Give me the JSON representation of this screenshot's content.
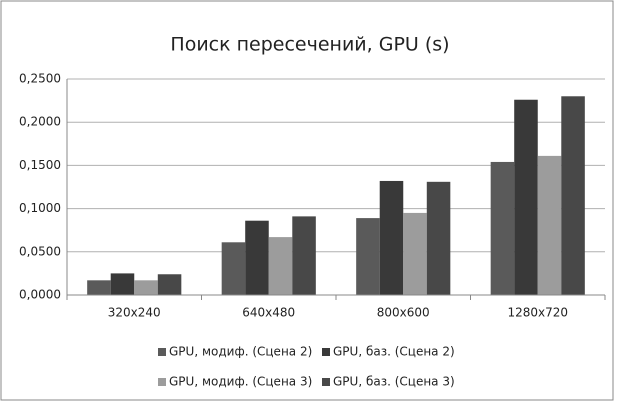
{
  "chart_data": {
    "type": "bar",
    "title": "Поиск пересечений, GPU (s)",
    "categories": [
      "320x240",
      "640x480",
      "800x600",
      "1280x720"
    ],
    "series": [
      {
        "name": "GPU, модиф. (Сцена 2)",
        "color": "#5a5a5a",
        "values": [
          0.017,
          0.061,
          0.089,
          0.154
        ]
      },
      {
        "name": "GPU, баз. (Сцена 2)",
        "color": "#393939",
        "values": [
          0.025,
          0.086,
          0.132,
          0.226
        ]
      },
      {
        "name": "GPU, модиф. (Сцена 3)",
        "color": "#9c9c9c",
        "values": [
          0.017,
          0.067,
          0.095,
          0.161
        ]
      },
      {
        "name": "GPU, баз. (Сцена 3)",
        "color": "#484848",
        "values": [
          0.024,
          0.091,
          0.131,
          0.23
        ]
      }
    ],
    "ylim": [
      0,
      0.25
    ],
    "yticks": [
      {
        "value": 0,
        "label": "0,0000"
      },
      {
        "value": 0.05,
        "label": "0,0500"
      },
      {
        "value": 0.1,
        "label": "0,1000"
      },
      {
        "value": 0.15,
        "label": "0,1500"
      },
      {
        "value": 0.2,
        "label": "0,2000"
      },
      {
        "value": 0.25,
        "label": "0,2500"
      }
    ],
    "grid": true
  }
}
